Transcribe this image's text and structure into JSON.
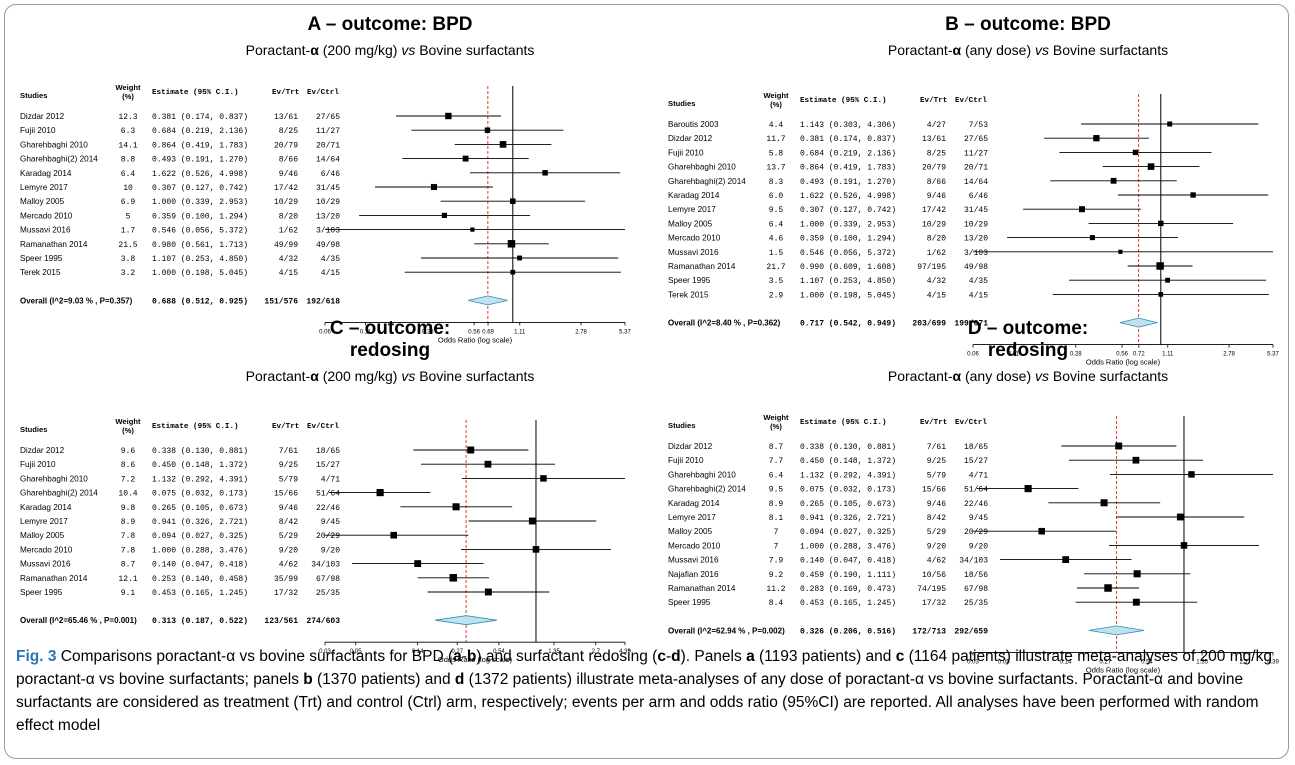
{
  "headers": {
    "study": "Studies",
    "weight": "Weight",
    "weight_unit": "(%)",
    "estimate": "Estimate (95% C.I.)",
    "ev_trt": "Ev/Trt",
    "ev_ctrl": "Ev/Ctrl",
    "axis_label": "Odds Ratio (log scale)"
  },
  "colors": {
    "square": "#000000",
    "diamond_fill": "#bfe3ee",
    "diamond_stroke": "#2e8fb5",
    "ref_line": "#000000",
    "pooled_line": "#e8382e",
    "caption_fig": "#2a76b8"
  },
  "panels": [
    {
      "id": "A",
      "title_letter": "A",
      "title_rest": " – outcome: BPD",
      "title_line2": "",
      "sub_pre": "Poractant-",
      "sub_alpha": "α",
      "sub_mid": " (200 mg/kg) ",
      "sub_vs": "vs",
      "sub_post": " Bovine surfactants",
      "overall_label": "Overall (I^2=9.03 % , P=0.357)",
      "ticks": [
        "0.06",
        "0.11",
        "0.28",
        "0.56",
        "0.69",
        "1.11",
        "2.78",
        "5.37"
      ],
      "chart_data": {
        "type": "forest",
        "xscale": "log",
        "xlim": [
          0.06,
          5.37
        ],
        "pooled_or": 0.688,
        "rows": [
          {
            "study": "Dizdar 2012",
            "weight": "12.3",
            "est": "0.381 (0.174, 0.837)",
            "or": 0.381,
            "lo": 0.174,
            "hi": 0.837,
            "trt": "13/61",
            "ctrl": "27/65"
          },
          {
            "study": "Fujii 2010",
            "weight": "6.3",
            "est": "0.684 (0.219, 2.136)",
            "or": 0.684,
            "lo": 0.219,
            "hi": 2.136,
            "trt": "8/25",
            "ctrl": "11/27"
          },
          {
            "study": "Gharehbaghi 2010",
            "weight": "14.1",
            "est": "0.864 (0.419, 1.783)",
            "or": 0.864,
            "lo": 0.419,
            "hi": 1.783,
            "trt": "20/79",
            "ctrl": "20/71"
          },
          {
            "study": "Gharehbaghi(2) 2014",
            "weight": "8.8",
            "est": "0.493 (0.191, 1.270)",
            "or": 0.493,
            "lo": 0.191,
            "hi": 1.27,
            "trt": "8/66",
            "ctrl": "14/64"
          },
          {
            "study": "Karadag 2014",
            "weight": "6.4",
            "est": "1.622 (0.526, 4.998)",
            "or": 1.622,
            "lo": 0.526,
            "hi": 4.998,
            "trt": "9/46",
            "ctrl": "6/46"
          },
          {
            "study": "Lemyre 2017",
            "weight": "10",
            "est": "0.307 (0.127, 0.742)",
            "or": 0.307,
            "lo": 0.127,
            "hi": 0.742,
            "trt": "17/42",
            "ctrl": "31/45"
          },
          {
            "study": "Malloy 2005",
            "weight": "6.9",
            "est": "1.000 (0.339, 2.953)",
            "or": 1.0,
            "lo": 0.339,
            "hi": 2.953,
            "trt": "10/29",
            "ctrl": "10/29"
          },
          {
            "study": "Mercado 2010",
            "weight": "5",
            "est": "0.359 (0.100, 1.294)",
            "or": 0.359,
            "lo": 0.1,
            "hi": 1.294,
            "trt": "8/20",
            "ctrl": "13/20"
          },
          {
            "study": "Mussavi 2016",
            "weight": "1.7",
            "est": "0.546 (0.056, 5.372)",
            "or": 0.546,
            "lo": 0.056,
            "hi": 5.372,
            "trt": "1/62",
            "ctrl": "3/103"
          },
          {
            "study": "Ramanathan 2014",
            "weight": "21.5",
            "est": "0.980 (0.561, 1.713)",
            "or": 0.98,
            "lo": 0.561,
            "hi": 1.713,
            "trt": "49/99",
            "ctrl": "49/98"
          },
          {
            "study": "Speer 1995",
            "weight": "3.8",
            "est": "1.107 (0.253, 4.850)",
            "or": 1.107,
            "lo": 0.253,
            "hi": 4.85,
            "trt": "4/32",
            "ctrl": "4/35"
          },
          {
            "study": "Terek 2015",
            "weight": "3.2",
            "est": "1.000 (0.198, 5.045)",
            "or": 1.0,
            "lo": 0.198,
            "hi": 5.045,
            "trt": "4/15",
            "ctrl": "4/15"
          }
        ],
        "overall": {
          "est": "0.688 (0.512, 0.925)",
          "or": 0.688,
          "lo": 0.512,
          "hi": 0.925,
          "trt": "151/576",
          "ctrl": "192/618"
        }
      }
    },
    {
      "id": "B",
      "title_letter": "B",
      "title_rest": " – outcome: BPD",
      "title_line2": "",
      "sub_pre": "Poractant-",
      "sub_alpha": "α",
      "sub_mid": " (any dose) ",
      "sub_vs": "vs",
      "sub_post": " Bovine surfactants",
      "overall_label": "Overall (I^2=8.40 % , P=0.362)",
      "ticks": [
        "0.06",
        "0.11",
        "0.28",
        "0.56",
        "0.72",
        "1.11",
        "2.78",
        "5.37"
      ],
      "chart_data": {
        "type": "forest",
        "xscale": "log",
        "xlim": [
          0.06,
          5.37
        ],
        "pooled_or": 0.717,
        "rows": [
          {
            "study": "Baroutis 2003",
            "weight": "4.4",
            "est": "1.143 (0.303, 4.306)",
            "or": 1.143,
            "lo": 0.303,
            "hi": 4.306,
            "trt": "4/27",
            "ctrl": "7/53"
          },
          {
            "study": "Dizdar 2012",
            "weight": "11.7",
            "est": "0.381 (0.174, 0.837)",
            "or": 0.381,
            "lo": 0.174,
            "hi": 0.837,
            "trt": "13/61",
            "ctrl": "27/65"
          },
          {
            "study": "Fujii 2010",
            "weight": "5.8",
            "est": "0.684 (0.219, 2.136)",
            "or": 0.684,
            "lo": 0.219,
            "hi": 2.136,
            "trt": "8/25",
            "ctrl": "11/27"
          },
          {
            "study": "Gharehbaghi 2010",
            "weight": "13.7",
            "est": "0.864 (0.419, 1.783)",
            "or": 0.864,
            "lo": 0.419,
            "hi": 1.783,
            "trt": "20/79",
            "ctrl": "20/71"
          },
          {
            "study": "Gharehbaghi(2) 2014",
            "weight": "8.3",
            "est": "0.493 (0.191, 1.270)",
            "or": 0.493,
            "lo": 0.191,
            "hi": 1.27,
            "trt": "8/66",
            "ctrl": "14/64"
          },
          {
            "study": "Karadag 2014",
            "weight": "6.0",
            "est": "1.622 (0.526, 4.998)",
            "or": 1.622,
            "lo": 0.526,
            "hi": 4.998,
            "trt": "9/46",
            "ctrl": "6/46"
          },
          {
            "study": "Lemyre 2017",
            "weight": "9.5",
            "est": "0.307 (0.127, 0.742)",
            "or": 0.307,
            "lo": 0.127,
            "hi": 0.742,
            "trt": "17/42",
            "ctrl": "31/45"
          },
          {
            "study": "Malloy 2005",
            "weight": "6.4",
            "est": "1.000 (0.339, 2.953)",
            "or": 1.0,
            "lo": 0.339,
            "hi": 2.953,
            "trt": "10/29",
            "ctrl": "10/29"
          },
          {
            "study": "Mercado 2010",
            "weight": "4.6",
            "est": "0.359 (0.100, 1.294)",
            "or": 0.359,
            "lo": 0.1,
            "hi": 1.294,
            "trt": "8/20",
            "ctrl": "13/20"
          },
          {
            "study": "Mussavi 2016",
            "weight": "1.5",
            "est": "0.546 (0.056, 5.372)",
            "or": 0.546,
            "lo": 0.056,
            "hi": 5.372,
            "trt": "1/62",
            "ctrl": "3/103"
          },
          {
            "study": "Ramanathan 2014",
            "weight": "21.7",
            "est": "0.990 (0.609, 1.608)",
            "or": 0.99,
            "lo": 0.609,
            "hi": 1.608,
            "trt": "97/195",
            "ctrl": "49/98"
          },
          {
            "study": "Speer 1995",
            "weight": "3.5",
            "est": "1.107 (0.253, 4.850)",
            "or": 1.107,
            "lo": 0.253,
            "hi": 4.85,
            "trt": "4/32",
            "ctrl": "4/35"
          },
          {
            "study": "Terek 2015",
            "weight": "2.9",
            "est": "1.000 (0.198, 5.045)",
            "or": 1.0,
            "lo": 0.198,
            "hi": 5.045,
            "trt": "4/15",
            "ctrl": "4/15"
          }
        ],
        "overall": {
          "est": "0.717 (0.542, 0.949)",
          "or": 0.717,
          "lo": 0.542,
          "hi": 0.949,
          "trt": "203/699",
          "ctrl": "199/671"
        }
      }
    },
    {
      "id": "C",
      "title_letter": "C",
      "title_rest": " – outcome:",
      "title_line2": "redosing",
      "sub_pre": "Poractant-",
      "sub_alpha": "α",
      "sub_mid": " (200 mg/kg) ",
      "sub_vs": "vs",
      "sub_post": " Bovine surfactants",
      "overall_label": "Overall (I^2=65.46 % , P=0.001)",
      "ticks": [
        "0.03",
        "0.05",
        "0.14",
        "0.27",
        "0.54",
        "1.35",
        "2.7",
        "4.39"
      ],
      "chart_data": {
        "type": "forest",
        "xscale": "log",
        "xlim": [
          0.03,
          4.39
        ],
        "pooled_or": 0.313,
        "rows": [
          {
            "study": "Dizdar 2012",
            "weight": "9.6",
            "est": "0.338 (0.130, 0.881)",
            "or": 0.338,
            "lo": 0.13,
            "hi": 0.881,
            "trt": "7/61",
            "ctrl": "18/65"
          },
          {
            "study": "Fujii 2010",
            "weight": "8.6",
            "est": "0.450 (0.148, 1.372)",
            "or": 0.45,
            "lo": 0.148,
            "hi": 1.372,
            "trt": "9/25",
            "ctrl": "15/27"
          },
          {
            "study": "Gharehbaghi 2010",
            "weight": "7.2",
            "est": "1.132 (0.292, 4.391)",
            "or": 1.132,
            "lo": 0.292,
            "hi": 4.391,
            "trt": "5/79",
            "ctrl": "4/71"
          },
          {
            "study": "Gharehbaghi(2) 2014",
            "weight": "10.4",
            "est": "0.075 (0.032, 0.173)",
            "or": 0.075,
            "lo": 0.032,
            "hi": 0.173,
            "trt": "15/66",
            "ctrl": "51/64"
          },
          {
            "study": "Karadag 2014",
            "weight": "9.8",
            "est": "0.265 (0.105, 0.673)",
            "or": 0.265,
            "lo": 0.105,
            "hi": 0.673,
            "trt": "9/46",
            "ctrl": "22/46"
          },
          {
            "study": "Lemyre 2017",
            "weight": "8.9",
            "est": "0.941 (0.326, 2.721)",
            "or": 0.941,
            "lo": 0.326,
            "hi": 2.721,
            "trt": "8/42",
            "ctrl": "9/45"
          },
          {
            "study": "Malloy 2005",
            "weight": "7.8",
            "est": "0.094 (0.027, 0.325)",
            "or": 0.094,
            "lo": 0.027,
            "hi": 0.325,
            "trt": "5/29",
            "ctrl": "20/29"
          },
          {
            "study": "Mercado 2010",
            "weight": "7.8",
            "est": "1.000 (0.288, 3.476)",
            "or": 1.0,
            "lo": 0.288,
            "hi": 3.476,
            "trt": "9/20",
            "ctrl": "9/20"
          },
          {
            "study": "Mussavi 2016",
            "weight": "8.7",
            "est": "0.140 (0.047, 0.418)",
            "or": 0.14,
            "lo": 0.047,
            "hi": 0.418,
            "trt": "4/62",
            "ctrl": "34/103"
          },
          {
            "study": "Ramanathan 2014",
            "weight": "12.1",
            "est": "0.253 (0.140, 0.458)",
            "or": 0.253,
            "lo": 0.14,
            "hi": 0.458,
            "trt": "35/99",
            "ctrl": "67/98"
          },
          {
            "study": "Speer 1995",
            "weight": "9.1",
            "est": "0.453 (0.165, 1.245)",
            "or": 0.453,
            "lo": 0.165,
            "hi": 1.245,
            "trt": "17/32",
            "ctrl": "25/35"
          }
        ],
        "overall": {
          "est": "0.313 (0.187, 0.522)",
          "or": 0.313,
          "lo": 0.187,
          "hi": 0.522,
          "trt": "123/561",
          "ctrl": "274/603"
        }
      }
    },
    {
      "id": "D",
      "title_letter": "D",
      "title_rest": " – outcome:",
      "title_line2": "redosing",
      "sub_pre": "Poractant-",
      "sub_alpha": "α",
      "sub_mid": " (any dose) ",
      "sub_vs": "vs",
      "sub_post": " Bovine surfactants",
      "overall_label": "Overall (I^2=62.94 % , P=0.002)",
      "ticks": [
        "0.03",
        "0.05",
        "0.14",
        "0.27",
        "0.54",
        "1.35",
        "2.7",
        "4.39"
      ],
      "chart_data": {
        "type": "forest",
        "xscale": "log",
        "xlim": [
          0.03,
          4.39
        ],
        "pooled_or": 0.326,
        "rows": [
          {
            "study": "Dizdar 2012",
            "weight": "8.7",
            "est": "0.338 (0.130, 0.881)",
            "or": 0.338,
            "lo": 0.13,
            "hi": 0.881,
            "trt": "7/61",
            "ctrl": "18/65"
          },
          {
            "study": "Fujii 2010",
            "weight": "7.7",
            "est": "0.450 (0.148, 1.372)",
            "or": 0.45,
            "lo": 0.148,
            "hi": 1.372,
            "trt": "9/25",
            "ctrl": "15/27"
          },
          {
            "study": "Gharehbaghi 2010",
            "weight": "6.4",
            "est": "1.132 (0.292, 4.391)",
            "or": 1.132,
            "lo": 0.292,
            "hi": 4.391,
            "trt": "5/79",
            "ctrl": "4/71"
          },
          {
            "study": "Gharehbaghi(2) 2014",
            "weight": "9.5",
            "est": "0.075 (0.032, 0.173)",
            "or": 0.075,
            "lo": 0.032,
            "hi": 0.173,
            "trt": "15/66",
            "ctrl": "51/64"
          },
          {
            "study": "Karadag 2014",
            "weight": "8.9",
            "est": "0.265 (0.105, 0.673)",
            "or": 0.265,
            "lo": 0.105,
            "hi": 0.673,
            "trt": "9/46",
            "ctrl": "22/46"
          },
          {
            "study": "Lemyre 2017",
            "weight": "8.1",
            "est": "0.941 (0.326, 2.721)",
            "or": 0.941,
            "lo": 0.326,
            "hi": 2.721,
            "trt": "8/42",
            "ctrl": "9/45"
          },
          {
            "study": "Malloy 2005",
            "weight": "7",
            "est": "0.094 (0.027, 0.325)",
            "or": 0.094,
            "lo": 0.027,
            "hi": 0.325,
            "trt": "5/29",
            "ctrl": "20/29"
          },
          {
            "study": "Mercado 2010",
            "weight": "7",
            "est": "1.000 (0.288, 3.476)",
            "or": 1.0,
            "lo": 0.288,
            "hi": 3.476,
            "trt": "9/20",
            "ctrl": "9/20"
          },
          {
            "study": "Mussavi 2016",
            "weight": "7.9",
            "est": "0.140 (0.047, 0.418)",
            "or": 0.14,
            "lo": 0.047,
            "hi": 0.418,
            "trt": "4/62",
            "ctrl": "34/103"
          },
          {
            "study": "Najafian 2016",
            "weight": "9.2",
            "est": "0.459 (0.190, 1.111)",
            "or": 0.459,
            "lo": 0.19,
            "hi": 1.111,
            "trt": "10/56",
            "ctrl": "18/56"
          },
          {
            "study": "Ramanathan 2014",
            "weight": "11.2",
            "est": "0.283 (0.169, 0.473)",
            "or": 0.283,
            "lo": 0.169,
            "hi": 0.473,
            "trt": "74/195",
            "ctrl": "67/98"
          },
          {
            "study": "Speer 1995",
            "weight": "8.4",
            "est": "0.453 (0.165, 1.245)",
            "or": 0.453,
            "lo": 0.165,
            "hi": 1.245,
            "trt": "17/32",
            "ctrl": "25/35"
          }
        ],
        "overall": {
          "est": "0.326 (0.206, 0.516)",
          "or": 0.326,
          "lo": 0.206,
          "hi": 0.516,
          "trt": "172/713",
          "ctrl": "292/659"
        }
      }
    }
  ],
  "caption": {
    "fig": "Fig. 3",
    "t1": " Comparisons poractant-α vs bovine surfactants for BPD (",
    "a": "a",
    "dash": "-",
    "b": "b",
    "t2": ") and surfactant redosing (",
    "c": "c",
    "d": "d",
    "t3": "). Panels ",
    "t4": " (1193 patients) and ",
    "t5": " (1164 patients) illustrate meta-analyses of 200 mg/kg poractant-α vs bovine surfactants; panels ",
    "t6": " (1370 patients) and ",
    "t7": " (1372 patients) illustrate meta-analyses of any dose of poractant-α vs bovine surfactants. Poractant-α and bovine surfactants are considered as treatment (Trt) and control (Ctrl) arm, respectively; events per arm and odds ratio (95%CI) are reported. All analyses have been performed with random effect model"
  }
}
